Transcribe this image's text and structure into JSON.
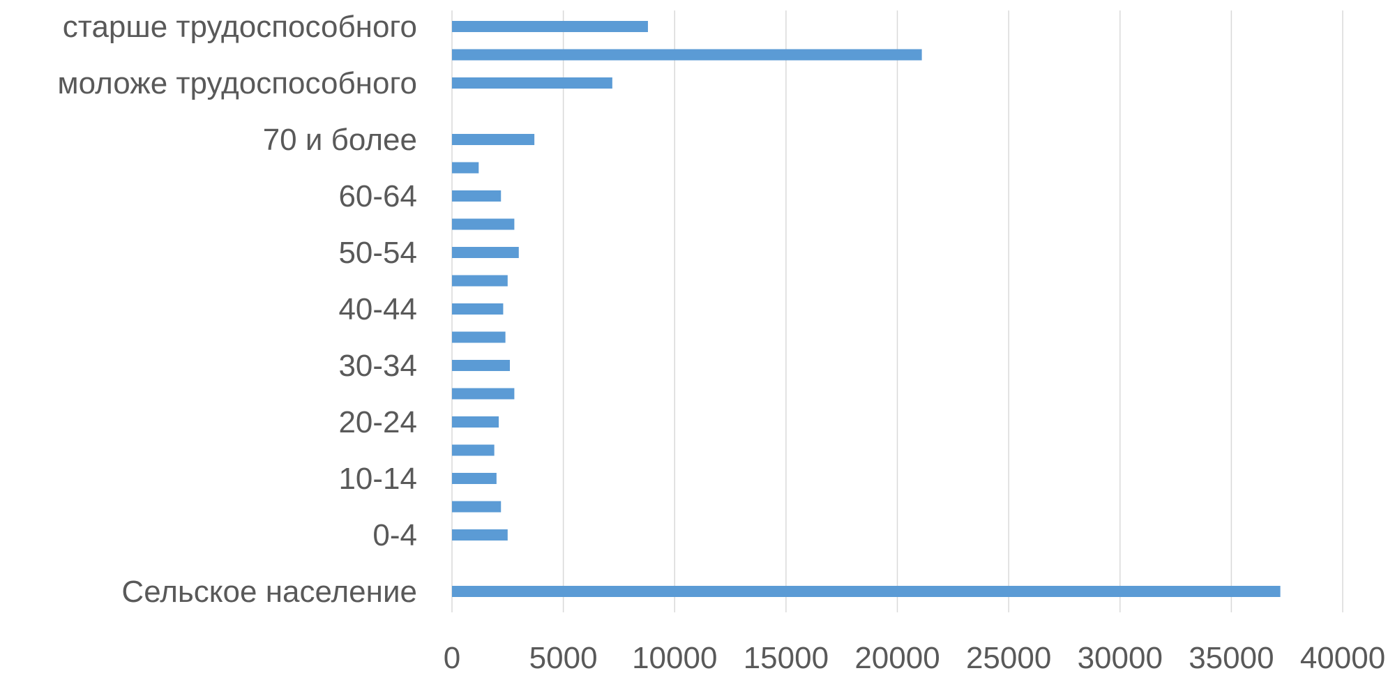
{
  "chart_data": {
    "type": "bar",
    "orientation": "horizontal",
    "title": "",
    "xlabel": "",
    "ylabel": "",
    "categories": [
      "старше трудоспособного",
      "",
      "моложе трудоспособного",
      "",
      "70 и более",
      "",
      "60-64",
      "",
      "50-54",
      "",
      "40-44",
      "",
      "30-34",
      "",
      "20-24",
      "",
      "10-14",
      "",
      "0-4",
      "",
      "Сельское население"
    ],
    "values": [
      8800,
      21100,
      7200,
      null,
      3700,
      1200,
      2200,
      2800,
      3000,
      2500,
      2300,
      2400,
      2600,
      2800,
      2100,
      1900,
      2000,
      2200,
      2500,
      null,
      37200
    ],
    "xlim": [
      0,
      40000
    ],
    "xticks": [
      "0",
      "5000",
      "10000",
      "15000",
      "20000",
      "25000",
      "30000",
      "35000",
      "40000"
    ],
    "grid": true,
    "legend": "none",
    "bar_color": "#5b9bd5"
  }
}
